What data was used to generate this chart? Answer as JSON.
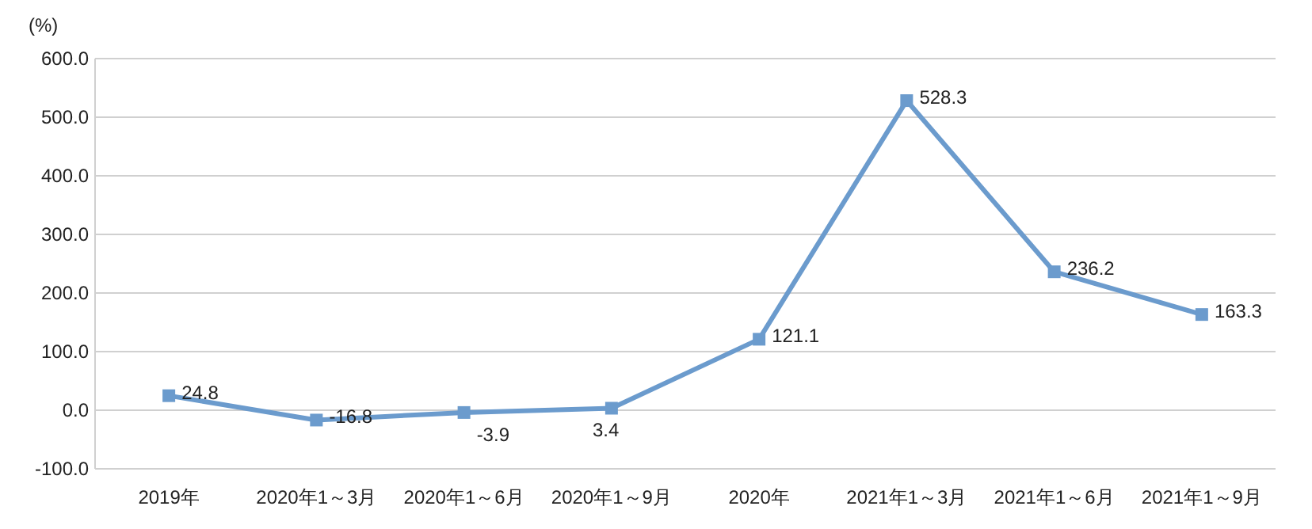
{
  "chart_data": {
    "type": "line",
    "ylabel": "(%)",
    "categories": [
      "2019年",
      "2020年1～3月",
      "2020年1～6月",
      "2020年1～9月",
      "2020年",
      "2021年1～3月",
      "2021年1～6月",
      "2021年1～9月"
    ],
    "series": [
      {
        "color": "#6b9bcd",
        "values": [
          24.8,
          -16.8,
          -3.9,
          3.4,
          121.1,
          528.3,
          236.2,
          163.3
        ]
      }
    ],
    "ylim": [
      -100,
      600
    ],
    "yticks": [
      {
        "value": -100,
        "label": "-100.0"
      },
      {
        "value": 0,
        "label": "0.0"
      },
      {
        "value": 100,
        "label": "100.0"
      },
      {
        "value": 200,
        "label": "200.0"
      },
      {
        "value": 300,
        "label": "300.0"
      },
      {
        "value": 400,
        "label": "400.0"
      },
      {
        "value": 500,
        "label": "500.0"
      },
      {
        "value": 600,
        "label": "600.0"
      }
    ],
    "grid": "y",
    "marker": "square",
    "line_style": "solid",
    "data_labels": true
  }
}
